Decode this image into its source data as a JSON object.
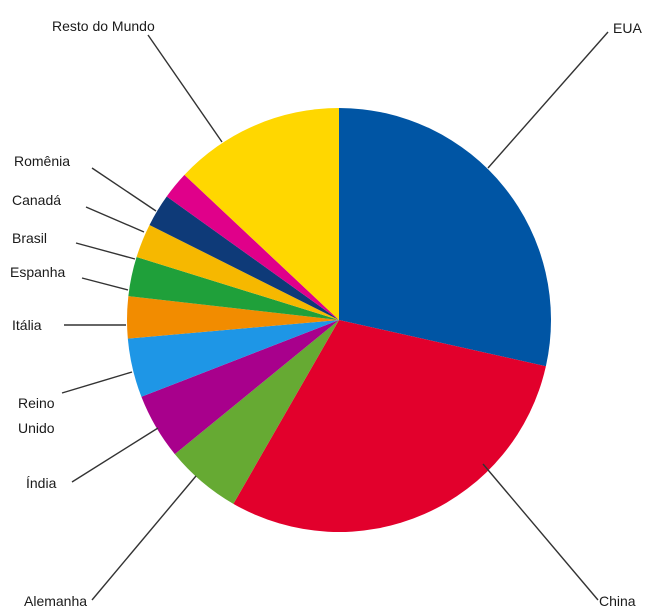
{
  "chart_data": {
    "type": "pie",
    "title": "",
    "slices": [
      {
        "label": "EUA",
        "value": 28.5,
        "color": "#0055A4"
      },
      {
        "label": "China",
        "value": 29.8,
        "color": "#E2002C"
      },
      {
        "label": "Alemanha",
        "value": 5.8,
        "color": "#66AA33"
      },
      {
        "label": "Índia",
        "value": 5.0,
        "color": "#A8008C"
      },
      {
        "label": "Reino Unido",
        "value": 4.5,
        "color": "#1E96E6"
      },
      {
        "label": "Itália",
        "value": 3.2,
        "color": "#F28C00"
      },
      {
        "label": "Espanha",
        "value": 3.0,
        "color": "#1FA03A"
      },
      {
        "label": "Brasil",
        "value": 2.6,
        "color": "#F6B800"
      },
      {
        "label": "Canadá",
        "value": 2.5,
        "color": "#0E3A78"
      },
      {
        "label": "Romênia",
        "value": 2.1,
        "color": "#E0008A"
      },
      {
        "label": "Resto do Mundo",
        "value": 13.0,
        "color": "#FFD700"
      }
    ]
  }
}
